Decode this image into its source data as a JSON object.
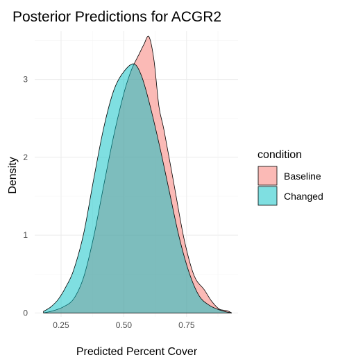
{
  "chart_data": {
    "type": "area",
    "title": "Posterior Predictions for ACGR2",
    "xlabel": "Predicted Percent Cover",
    "ylabel": "Density",
    "xlim": [
      0.145,
      0.955
    ],
    "ylim": [
      -0.05,
      3.62
    ],
    "xticks": [
      0.25,
      0.5,
      0.75
    ],
    "xtick_labels": [
      "0.25",
      "0.50",
      "0.75"
    ],
    "yticks": [
      0,
      1,
      2,
      3
    ],
    "ytick_labels": [
      "0",
      "1",
      "2",
      "3"
    ],
    "grid": true,
    "legend": {
      "title": "condition",
      "position": "right"
    },
    "series": [
      {
        "name": "Baseline",
        "color": "#F8766D",
        "x": [
          0.18,
          0.22,
          0.26,
          0.3,
          0.34,
          0.38,
          0.42,
          0.46,
          0.5,
          0.53,
          0.56,
          0.58,
          0.6,
          0.62,
          0.64,
          0.66,
          0.7,
          0.74,
          0.78,
          0.82,
          0.85,
          0.88,
          0.91,
          0.93
        ],
        "y": [
          0.0,
          0.03,
          0.08,
          0.18,
          0.46,
          0.98,
          1.64,
          2.28,
          2.82,
          3.12,
          3.32,
          3.45,
          3.55,
          3.25,
          2.65,
          2.35,
          1.65,
          0.95,
          0.48,
          0.3,
          0.15,
          0.05,
          0.03,
          0.0
        ]
      },
      {
        "name": "Changed",
        "color": "#00BFC4",
        "x": [
          0.18,
          0.21,
          0.24,
          0.27,
          0.3,
          0.34,
          0.38,
          0.42,
          0.46,
          0.5,
          0.54,
          0.57,
          0.6,
          0.64,
          0.68,
          0.72,
          0.76,
          0.8,
          0.84,
          0.88,
          0.9,
          0.93
        ],
        "y": [
          0.02,
          0.08,
          0.18,
          0.34,
          0.55,
          1.02,
          1.72,
          2.38,
          2.86,
          3.1,
          3.2,
          3.05,
          2.72,
          2.18,
          1.58,
          0.98,
          0.52,
          0.22,
          0.1,
          0.04,
          0.02,
          0.0
        ]
      }
    ]
  }
}
